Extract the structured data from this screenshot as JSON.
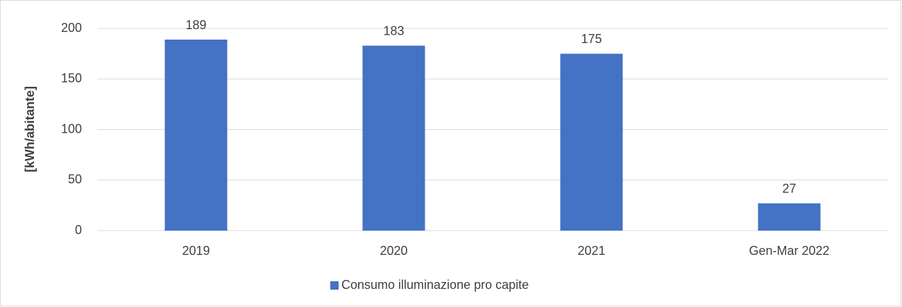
{
  "chart_data": {
    "type": "bar",
    "y_label": "[kWh/abitante]",
    "categories": [
      "2019",
      "2020",
      "2021",
      "Gen-Mar 2022"
    ],
    "series": [
      {
        "name": "Consumo illuminazione pro capite",
        "color": "#4472c4",
        "values": [
          189,
          183,
          175,
          27
        ]
      }
    ],
    "ylim": [
      0,
      200
    ],
    "yticks": [
      0,
      50,
      100,
      150,
      200
    ],
    "grid": true,
    "legend": "bottom"
  }
}
